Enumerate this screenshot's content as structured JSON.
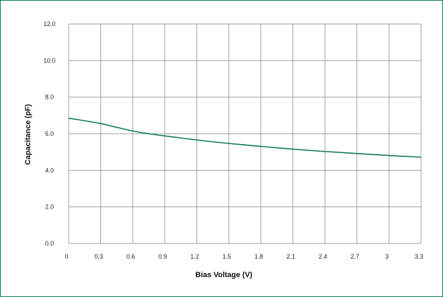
{
  "chart_data": {
    "type": "line",
    "title": "",
    "xlabel": "Bias Voltage (V)",
    "ylabel": "Capacitance (pF)",
    "xlim": [
      0,
      3.3
    ],
    "ylim": [
      0,
      12
    ],
    "xticks": [
      "0",
      "0.3",
      "0.6",
      "0.9",
      "1.2",
      "1.5",
      "1.8",
      "2.1",
      "2.4",
      "2.7",
      "3",
      "3.3"
    ],
    "yticks": [
      "0.0",
      "2.0",
      "4.0",
      "6.0",
      "8.0",
      "10.0",
      "12.0"
    ],
    "grid": true,
    "series": [
      {
        "color": "#0e7a4f",
        "x": [
          0,
          0.1,
          0.2,
          0.3,
          0.4,
          0.5,
          0.6,
          0.75,
          0.9,
          1.05,
          1.2,
          1.35,
          1.5,
          1.65,
          1.8,
          2.1,
          2.4,
          2.7,
          3.0,
          3.3
        ],
        "y": [
          6.85,
          6.76,
          6.66,
          6.56,
          6.42,
          6.28,
          6.15,
          6.0,
          5.88,
          5.77,
          5.66,
          5.56,
          5.47,
          5.39,
          5.31,
          5.16,
          5.03,
          4.92,
          4.81,
          4.72
        ]
      }
    ]
  }
}
